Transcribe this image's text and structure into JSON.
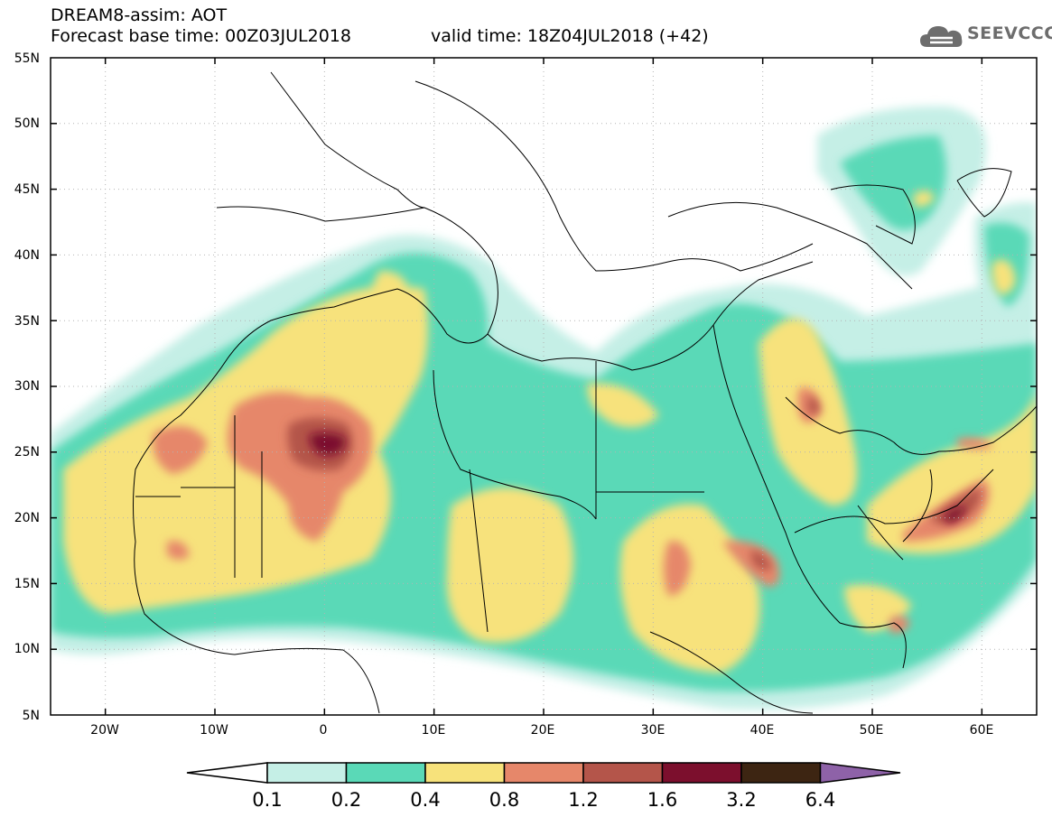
{
  "header": {
    "title": "DREAM8-assim: AOT",
    "base_time": "Forecast base time: 00Z03JUL2018",
    "valid_time": "valid time: 18Z04JUL2018 (+42)"
  },
  "logo": {
    "text": "SEEVCCC",
    "icon": "cloud-icon"
  },
  "map": {
    "lat_labels": [
      "55N",
      "50N",
      "45N",
      "40N",
      "35N",
      "30N",
      "25N",
      "20N",
      "15N",
      "10N",
      "5N"
    ],
    "lon_labels": [
      "20W",
      "10W",
      "0",
      "10E",
      "20E",
      "30E",
      "40E",
      "50E",
      "60E"
    ],
    "extent": {
      "lon": [
        -25,
        65
      ],
      "lat": [
        5,
        55
      ]
    }
  },
  "colorbar": {
    "labels": [
      "0.1",
      "0.2",
      "0.4",
      "0.8",
      "1.2",
      "1.6",
      "3.2",
      "6.4"
    ],
    "colors": [
      "#ffffff",
      "#c5efe6",
      "#5ad9b7",
      "#f7e27b",
      "#e6876a",
      "#b4554a",
      "#7c0f2d",
      "#3d2512",
      "#8e62a8"
    ]
  }
}
